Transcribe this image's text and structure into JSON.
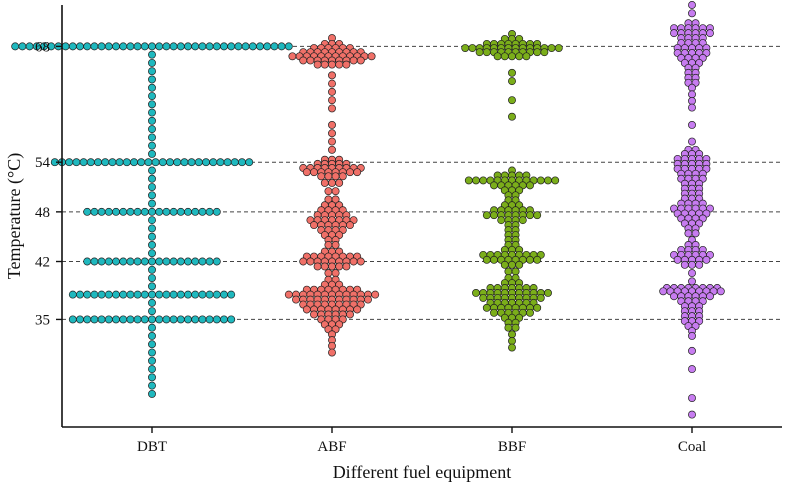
{
  "chart_data": {
    "type": "scatter",
    "subtype": "beeswarm",
    "title": "",
    "xlabel": "Different fuel equipment",
    "ylabel": "Temperature (°C)",
    "categories": [
      "DBT",
      "ABF",
      "BBF",
      "Coal"
    ],
    "y_ticks": [
      35,
      42,
      48,
      54,
      68
    ],
    "reference_lines": [
      35,
      42,
      48,
      54,
      68
    ],
    "ylim": [
      22,
      73
    ],
    "grid": false,
    "legend": "none",
    "colors": {
      "DBT": "#1fb8be",
      "ABF": "#f07068",
      "BBF": "#7bae1a",
      "Coal": "#c77cf0",
      "outline": "#222222",
      "reference_line": "#444444",
      "axis": "#111111"
    },
    "series": [
      {
        "name": "DBT",
        "groups": [
          {
            "y": 68.0,
            "n": 39
          },
          {
            "y": 67.0,
            "n": 1
          },
          {
            "y": 66.0,
            "n": 1
          },
          {
            "y": 65.0,
            "n": 1
          },
          {
            "y": 64.0,
            "n": 1
          },
          {
            "y": 63.0,
            "n": 1
          },
          {
            "y": 62.0,
            "n": 1
          },
          {
            "y": 61.0,
            "n": 1
          },
          {
            "y": 60.0,
            "n": 1
          },
          {
            "y": 59.0,
            "n": 1
          },
          {
            "y": 58.0,
            "n": 1
          },
          {
            "y": 57.0,
            "n": 1
          },
          {
            "y": 56.0,
            "n": 1
          },
          {
            "y": 55.0,
            "n": 1
          },
          {
            "y": 54.0,
            "n": 28
          },
          {
            "y": 53.0,
            "n": 1
          },
          {
            "y": 52.0,
            "n": 1
          },
          {
            "y": 51.0,
            "n": 1
          },
          {
            "y": 50.0,
            "n": 1
          },
          {
            "y": 49.0,
            "n": 1
          },
          {
            "y": 48.0,
            "n": 19
          },
          {
            "y": 47.0,
            "n": 1
          },
          {
            "y": 46.0,
            "n": 1
          },
          {
            "y": 45.0,
            "n": 1
          },
          {
            "y": 44.0,
            "n": 1
          },
          {
            "y": 43.0,
            "n": 1
          },
          {
            "y": 42.0,
            "n": 19
          },
          {
            "y": 41.0,
            "n": 1
          },
          {
            "y": 40.0,
            "n": 1
          },
          {
            "y": 39.0,
            "n": 1
          },
          {
            "y": 38.0,
            "n": 23
          },
          {
            "y": 37.0,
            "n": 1
          },
          {
            "y": 36.0,
            "n": 1
          },
          {
            "y": 35.0,
            "n": 23
          },
          {
            "y": 34.0,
            "n": 1
          },
          {
            "y": 33.0,
            "n": 1
          },
          {
            "y": 32.0,
            "n": 1
          },
          {
            "y": 31.0,
            "n": 1
          },
          {
            "y": 30.0,
            "n": 1
          },
          {
            "y": 29.0,
            "n": 1
          },
          {
            "y": 28.0,
            "n": 1
          },
          {
            "y": 27.0,
            "n": 1
          },
          {
            "y": 26.0,
            "n": 1
          }
        ]
      },
      {
        "name": "ABF",
        "groups": [
          {
            "y": 69.0,
            "n": 1
          },
          {
            "y": 68.3,
            "n": 3
          },
          {
            "y": 67.8,
            "n": 6
          },
          {
            "y": 67.3,
            "n": 9
          },
          {
            "y": 66.8,
            "n": 12
          },
          {
            "y": 66.3,
            "n": 9
          },
          {
            "y": 65.8,
            "n": 5
          },
          {
            "y": 64.5,
            "n": 1
          },
          {
            "y": 63.5,
            "n": 1
          },
          {
            "y": 62.5,
            "n": 1
          },
          {
            "y": 61.5,
            "n": 1
          },
          {
            "y": 60.5,
            "n": 1
          },
          {
            "y": 58.5,
            "n": 1
          },
          {
            "y": 57.5,
            "n": 1
          },
          {
            "y": 56.5,
            "n": 1
          },
          {
            "y": 55.5,
            "n": 1
          },
          {
            "y": 54.3,
            "n": 3
          },
          {
            "y": 53.8,
            "n": 5
          },
          {
            "y": 53.3,
            "n": 9
          },
          {
            "y": 52.8,
            "n": 8
          },
          {
            "y": 52.3,
            "n": 4
          },
          {
            "y": 51.5,
            "n": 3
          },
          {
            "y": 50.5,
            "n": 2
          },
          {
            "y": 49.5,
            "n": 2
          },
          {
            "y": 48.8,
            "n": 3
          },
          {
            "y": 48.2,
            "n": 4
          },
          {
            "y": 47.6,
            "n": 5
          },
          {
            "y": 47.0,
            "n": 7
          },
          {
            "y": 46.4,
            "n": 6
          },
          {
            "y": 45.8,
            "n": 4
          },
          {
            "y": 45.2,
            "n": 3
          },
          {
            "y": 44.6,
            "n": 2
          },
          {
            "y": 44.0,
            "n": 2
          },
          {
            "y": 43.2,
            "n": 3
          },
          {
            "y": 42.6,
            "n": 8
          },
          {
            "y": 42.0,
            "n": 9
          },
          {
            "y": 41.4,
            "n": 5
          },
          {
            "y": 40.6,
            "n": 2
          },
          {
            "y": 39.8,
            "n": 2
          },
          {
            "y": 39.2,
            "n": 3
          },
          {
            "y": 38.6,
            "n": 8
          },
          {
            "y": 38.0,
            "n": 13
          },
          {
            "y": 37.4,
            "n": 11
          },
          {
            "y": 36.8,
            "n": 9
          },
          {
            "y": 36.2,
            "n": 8
          },
          {
            "y": 35.6,
            "n": 6
          },
          {
            "y": 35.0,
            "n": 4
          },
          {
            "y": 34.4,
            "n": 3
          },
          {
            "y": 33.8,
            "n": 2
          },
          {
            "y": 33.2,
            "n": 1
          },
          {
            "y": 32.5,
            "n": 1
          },
          {
            "y": 31.8,
            "n": 1
          },
          {
            "y": 31.0,
            "n": 1
          }
        ]
      },
      {
        "name": "BBF",
        "groups": [
          {
            "y": 69.5,
            "n": 1
          },
          {
            "y": 68.9,
            "n": 3
          },
          {
            "y": 68.3,
            "n": 8
          },
          {
            "y": 67.8,
            "n": 14
          },
          {
            "y": 67.3,
            "n": 10
          },
          {
            "y": 66.8,
            "n": 5
          },
          {
            "y": 64.8,
            "n": 1
          },
          {
            "y": 63.8,
            "n": 1
          },
          {
            "y": 61.5,
            "n": 1
          },
          {
            "y": 59.5,
            "n": 1
          },
          {
            "y": 53.0,
            "n": 1
          },
          {
            "y": 52.4,
            "n": 5
          },
          {
            "y": 51.8,
            "n": 13
          },
          {
            "y": 51.2,
            "n": 6
          },
          {
            "y": 50.6,
            "n": 3
          },
          {
            "y": 50.0,
            "n": 2
          },
          {
            "y": 49.4,
            "n": 2
          },
          {
            "y": 48.8,
            "n": 3
          },
          {
            "y": 48.2,
            "n": 6
          },
          {
            "y": 47.6,
            "n": 8
          },
          {
            "y": 47.0,
            "n": 4
          },
          {
            "y": 46.4,
            "n": 2
          },
          {
            "y": 45.8,
            "n": 2
          },
          {
            "y": 45.2,
            "n": 2
          },
          {
            "y": 44.6,
            "n": 2
          },
          {
            "y": 44.0,
            "n": 2
          },
          {
            "y": 43.4,
            "n": 3
          },
          {
            "y": 42.8,
            "n": 9
          },
          {
            "y": 42.2,
            "n": 8
          },
          {
            "y": 41.6,
            "n": 3
          },
          {
            "y": 40.8,
            "n": 2
          },
          {
            "y": 40.0,
            "n": 2
          },
          {
            "y": 39.4,
            "n": 3
          },
          {
            "y": 38.8,
            "n": 7
          },
          {
            "y": 38.2,
            "n": 11
          },
          {
            "y": 37.6,
            "n": 9
          },
          {
            "y": 37.0,
            "n": 7
          },
          {
            "y": 36.4,
            "n": 8
          },
          {
            "y": 35.8,
            "n": 6
          },
          {
            "y": 35.2,
            "n": 3
          },
          {
            "y": 34.6,
            "n": 2
          },
          {
            "y": 34.0,
            "n": 2
          },
          {
            "y": 33.2,
            "n": 1
          },
          {
            "y": 32.4,
            "n": 1
          },
          {
            "y": 31.6,
            "n": 1
          }
        ]
      },
      {
        "name": "Coal",
        "groups": [
          {
            "y": 73.0,
            "n": 1
          },
          {
            "y": 72.0,
            "n": 1
          },
          {
            "y": 70.8,
            "n": 2
          },
          {
            "y": 70.2,
            "n": 6
          },
          {
            "y": 69.6,
            "n": 6
          },
          {
            "y": 69.0,
            "n": 4
          },
          {
            "y": 68.4,
            "n": 4
          },
          {
            "y": 67.8,
            "n": 5
          },
          {
            "y": 67.2,
            "n": 5
          },
          {
            "y": 66.6,
            "n": 4
          },
          {
            "y": 66.0,
            "n": 3
          },
          {
            "y": 65.4,
            "n": 2
          },
          {
            "y": 64.8,
            "n": 2
          },
          {
            "y": 64.2,
            "n": 2
          },
          {
            "y": 63.6,
            "n": 2
          },
          {
            "y": 63.0,
            "n": 1
          },
          {
            "y": 62.2,
            "n": 1
          },
          {
            "y": 61.4,
            "n": 1
          },
          {
            "y": 60.6,
            "n": 1
          },
          {
            "y": 58.5,
            "n": 1
          },
          {
            "y": 56.5,
            "n": 1
          },
          {
            "y": 55.5,
            "n": 2
          },
          {
            "y": 55.0,
            "n": 3
          },
          {
            "y": 54.4,
            "n": 5
          },
          {
            "y": 53.8,
            "n": 5
          },
          {
            "y": 53.2,
            "n": 5
          },
          {
            "y": 52.6,
            "n": 4
          },
          {
            "y": 52.0,
            "n": 4
          },
          {
            "y": 51.4,
            "n": 3
          },
          {
            "y": 50.8,
            "n": 3
          },
          {
            "y": 50.2,
            "n": 3
          },
          {
            "y": 49.6,
            "n": 3
          },
          {
            "y": 49.0,
            "n": 4
          },
          {
            "y": 48.4,
            "n": 6
          },
          {
            "y": 47.8,
            "n": 5
          },
          {
            "y": 47.2,
            "n": 4
          },
          {
            "y": 46.6,
            "n": 3
          },
          {
            "y": 46.0,
            "n": 2
          },
          {
            "y": 45.4,
            "n": 2
          },
          {
            "y": 44.6,
            "n": 1
          },
          {
            "y": 44.0,
            "n": 2
          },
          {
            "y": 43.4,
            "n": 4
          },
          {
            "y": 42.8,
            "n": 6
          },
          {
            "y": 42.2,
            "n": 5
          },
          {
            "y": 41.6,
            "n": 3
          },
          {
            "y": 40.6,
            "n": 1
          },
          {
            "y": 39.6,
            "n": 1
          },
          {
            "y": 38.8,
            "n": 8
          },
          {
            "y": 38.4,
            "n": 9
          },
          {
            "y": 37.8,
            "n": 6
          },
          {
            "y": 37.2,
            "n": 4
          },
          {
            "y": 36.6,
            "n": 3
          },
          {
            "y": 36.0,
            "n": 3
          },
          {
            "y": 35.4,
            "n": 3
          },
          {
            "y": 34.8,
            "n": 3
          },
          {
            "y": 34.2,
            "n": 2
          },
          {
            "y": 33.6,
            "n": 1
          },
          {
            "y": 33.0,
            "n": 1
          },
          {
            "y": 31.2,
            "n": 1
          },
          {
            "y": 29.0,
            "n": 1
          },
          {
            "y": 25.5,
            "n": 1
          },
          {
            "y": 23.5,
            "n": 1
          }
        ]
      }
    ]
  }
}
